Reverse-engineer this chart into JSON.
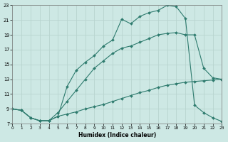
{
  "xlabel": "Humidex (Indice chaleur)",
  "bg_color": "#cde8e4",
  "grid_color": "#b8d4cf",
  "line_color": "#2e7b6e",
  "xlim": [
    0,
    23
  ],
  "ylim": [
    7,
    23
  ],
  "yticks": [
    7,
    9,
    11,
    13,
    15,
    17,
    19,
    21,
    23
  ],
  "xticks": [
    0,
    1,
    2,
    3,
    4,
    5,
    6,
    7,
    8,
    9,
    10,
    11,
    12,
    13,
    14,
    15,
    16,
    17,
    18,
    19,
    20,
    21,
    22,
    23
  ],
  "curve1_x": [
    0,
    1,
    2,
    3,
    4,
    5,
    6,
    7,
    8,
    9,
    10,
    11,
    12,
    13,
    14,
    15,
    16,
    17,
    18,
    19,
    20,
    21,
    22,
    23
  ],
  "curve1_y": [
    9.0,
    8.8,
    7.8,
    7.4,
    7.4,
    8.0,
    12.0,
    14.2,
    15.3,
    16.2,
    17.5,
    18.3,
    21.1,
    20.5,
    21.5,
    22.0,
    22.3,
    23.0,
    22.8,
    21.2,
    9.5,
    8.5,
    7.8,
    7.3
  ],
  "curve2_x": [
    0,
    1,
    2,
    3,
    4,
    5,
    6,
    7,
    8,
    9,
    10,
    11,
    12,
    13,
    14,
    15,
    16,
    17,
    18,
    19,
    20,
    21,
    22,
    23
  ],
  "curve2_y": [
    9.0,
    8.8,
    7.8,
    7.4,
    7.4,
    8.5,
    10.0,
    11.5,
    13.0,
    14.5,
    15.5,
    16.5,
    17.2,
    17.5,
    18.0,
    18.5,
    19.0,
    19.2,
    19.3,
    19.0,
    19.0,
    14.5,
    13.2,
    13.0
  ],
  "curve3_x": [
    0,
    1,
    2,
    3,
    4,
    5,
    6,
    7,
    8,
    9,
    10,
    11,
    12,
    13,
    14,
    15,
    16,
    17,
    18,
    19,
    20,
    21,
    22,
    23
  ],
  "curve3_y": [
    9.0,
    8.8,
    7.8,
    7.4,
    7.4,
    8.0,
    8.3,
    8.6,
    9.0,
    9.3,
    9.6,
    10.0,
    10.4,
    10.8,
    11.2,
    11.5,
    11.9,
    12.2,
    12.4,
    12.6,
    12.7,
    12.8,
    12.9,
    13.0
  ]
}
